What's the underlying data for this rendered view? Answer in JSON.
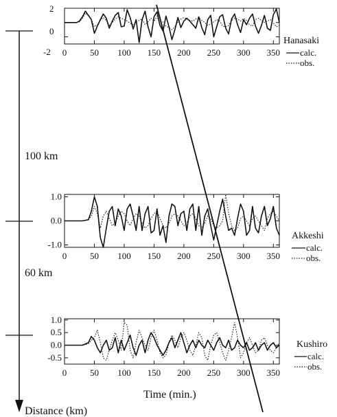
{
  "chart_data": [
    {
      "type": "line",
      "station": "Hanasaki",
      "x": [
        0,
        10,
        20,
        25,
        30,
        35,
        40,
        45,
        50,
        55,
        60,
        65,
        70,
        75,
        80,
        85,
        90,
        95,
        100,
        105,
        110,
        115,
        120,
        125,
        130,
        135,
        140,
        145,
        150,
        155,
        160,
        165,
        170,
        175,
        180,
        185,
        190,
        195,
        200,
        205,
        210,
        215,
        220,
        225,
        230,
        235,
        240,
        245,
        250,
        255,
        260,
        265,
        270,
        275,
        280,
        285,
        290,
        295,
        300,
        305,
        310,
        315,
        320,
        325,
        330,
        335,
        340,
        345,
        350,
        355,
        360
      ],
      "series": [
        {
          "name": "calc.",
          "style": "solid",
          "values": [
            0,
            0,
            0,
            0.2,
            0.8,
            1.6,
            1.0,
            0.4,
            -1.5,
            -0.5,
            0.4,
            1.2,
            0.6,
            -0.8,
            0.2,
            1.0,
            1.4,
            -0.6,
            -0.5,
            1.8,
            0.7,
            -0.9,
            0.4,
            -2.8,
            0.4,
            1.6,
            -0.6,
            -2.0,
            0.8,
            1.5,
            -0.4,
            -1.2,
            0.9,
            -0.6,
            -2.4,
            -1.0,
            0.7,
            -0.7,
            0.2,
            0.6,
            0.2,
            -0.3,
            -0.8,
            0.8,
            -0.7,
            -1.7,
            0.4,
            1.0,
            -2.0,
            -0.6,
            0.8,
            1.1,
            -0.8,
            -1.6,
            0.5,
            1.2,
            -0.3,
            -1.4,
            0.4,
            -0.3,
            0.6,
            1.2,
            -0.5,
            -1.5,
            -0.4,
            1.0,
            -0.8,
            -1.1,
            1.1,
            1.9,
            0.0
          ]
        },
        {
          "name": "obs.",
          "style": "dotted",
          "values": [
            0,
            0,
            0,
            0.1,
            0.6,
            1.3,
            1.0,
            0.4,
            -0.6,
            -0.3,
            0.3,
            0.7,
            0.3,
            -0.4,
            0.0,
            0.5,
            0.8,
            0.6,
            0.4,
            0.2,
            -0.1,
            -0.3,
            0.1,
            0.3,
            0.5,
            -0.3,
            0.1,
            0.6,
            0.2,
            0.9,
            -0.4,
            0.1,
            -0.5,
            -0.7,
            -1.0,
            -0.6,
            0.1,
            0.5,
            0.7,
            0.5,
            0.3,
            0.2,
            0.5,
            0.7,
            0.3,
            0.0,
            -0.4,
            -0.2,
            0.1,
            0.4,
            0.2,
            -0.5,
            -0.6,
            -0.4,
            0.3,
            0.6,
            0.5,
            0.2,
            0.6,
            0.3,
            -0.3,
            -0.5,
            0.4,
            0.6,
            0.3,
            0.0,
            0.2,
            0.4,
            -0.1,
            -0.6,
            -0.4
          ]
        }
      ],
      "ylim": [
        -3,
        2
      ],
      "yticks": [
        2,
        0,
        -2
      ],
      "xlim": [
        0,
        360
      ],
      "xticks": [
        0,
        50,
        100,
        150,
        200,
        250,
        300,
        350
      ]
    },
    {
      "type": "line",
      "station": "Akkeshi",
      "x": [
        0,
        10,
        20,
        30,
        40,
        45,
        50,
        55,
        60,
        65,
        70,
        75,
        80,
        85,
        90,
        95,
        100,
        105,
        110,
        115,
        120,
        125,
        130,
        135,
        140,
        145,
        150,
        155,
        160,
        165,
        170,
        175,
        180,
        185,
        190,
        195,
        200,
        205,
        210,
        215,
        220,
        225,
        230,
        235,
        240,
        245,
        250,
        255,
        260,
        265,
        270,
        275,
        280,
        285,
        290,
        295,
        300,
        305,
        310,
        315,
        320,
        325,
        330,
        335,
        340,
        345,
        350,
        355,
        360
      ],
      "series": [
        {
          "name": "calc.",
          "style": "solid",
          "values": [
            0,
            0,
            0,
            0,
            0.05,
            0.4,
            1.0,
            0.6,
            -0.7,
            -1.1,
            -0.3,
            0.4,
            0.6,
            -0.2,
            0.5,
            0.2,
            -0.4,
            0.5,
            0.7,
            0.2,
            -0.4,
            0.6,
            -0.4,
            0.3,
            0.6,
            -0.5,
            -0.4,
            0.5,
            -0.6,
            -0.2,
            -0.9,
            0.2,
            0.7,
            0.6,
            -0.2,
            0.3,
            0.4,
            -0.4,
            0.5,
            0.7,
            -0.4,
            0.6,
            -0.6,
            0.2,
            0.5,
            -0.2,
            -0.8,
            -0.2,
            0.4,
            0.9,
            0.2,
            -0.4,
            -0.3,
            -0.6,
            0.1,
            0.7,
            0.4,
            -0.6,
            -0.4,
            0.6,
            -0.3,
            -0.5,
            0.2,
            0.6,
            -0.2,
            0.1,
            0.6,
            -0.3,
            -0.6
          ]
        },
        {
          "name": "obs.",
          "style": "dotted",
          "values": [
            0,
            0,
            0,
            0,
            0.05,
            0.2,
            0.6,
            0.3,
            -0.3,
            0.2,
            0.4,
            0.1,
            -0.2,
            -0.1,
            0.2,
            0.4,
            0.3,
            0.0,
            -0.2,
            0.1,
            0.3,
            0.2,
            -0.1,
            -0.3,
            -0.2,
            0.1,
            0.3,
            0.4,
            0.1,
            -0.2,
            -0.3,
            -0.1,
            0.2,
            0.3,
            0.2,
            0.0,
            -0.2,
            -0.1,
            0.2,
            0.3,
            0.1,
            -0.2,
            -0.3,
            -0.1,
            0.2,
            0.1,
            -0.2,
            -0.3,
            -0.2,
            0.0,
            1.1,
            0.3,
            -0.2,
            -0.4,
            -0.3,
            0.1,
            0.2,
            0.0,
            -0.2,
            0.1,
            0.2,
            0.0,
            -0.2,
            -0.4,
            0.1,
            0.3,
            0.4,
            0.2,
            0.0
          ]
        }
      ],
      "ylim": [
        -1.1,
        1.1
      ],
      "yticks": [
        1.0,
        0.0,
        -1.0
      ],
      "ytick_labels": [
        "1.0",
        "0.0",
        "-1.0"
      ],
      "xlim": [
        0,
        360
      ],
      "xticks": [
        0,
        50,
        100,
        150,
        200,
        250,
        300,
        350
      ]
    },
    {
      "type": "line",
      "station": "Kushiro",
      "x": [
        0,
        10,
        20,
        30,
        40,
        45,
        50,
        55,
        60,
        65,
        70,
        75,
        80,
        85,
        90,
        95,
        100,
        105,
        110,
        115,
        120,
        125,
        130,
        135,
        140,
        145,
        150,
        155,
        160,
        165,
        170,
        175,
        180,
        185,
        190,
        195,
        200,
        205,
        210,
        215,
        220,
        225,
        230,
        235,
        240,
        245,
        250,
        255,
        260,
        265,
        270,
        275,
        280,
        285,
        290,
        295,
        300,
        305,
        310,
        315,
        320,
        325,
        330,
        335,
        340,
        345,
        350,
        355,
        360
      ],
      "series": [
        {
          "name": "calc.",
          "style": "solid",
          "values": [
            0,
            0,
            0,
            0,
            0.1,
            0.35,
            0.2,
            -0.1,
            -0.3,
            0.0,
            0.2,
            -0.2,
            -0.1,
            0.3,
            -0.3,
            0.2,
            -0.2,
            0.1,
            0.4,
            -0.1,
            -0.4,
            0.0,
            0.2,
            -0.3,
            0.2,
            0.5,
            0.3,
            0.0,
            -0.2,
            -0.4,
            -0.2,
            0.1,
            0.3,
            -0.1,
            0.2,
            0.5,
            0.1,
            -0.3,
            0.0,
            0.2,
            -0.1,
            0.2,
            0.0,
            -0.1,
            0.2,
            0.0,
            -0.2,
            0.1,
            0.3,
            0.0,
            -0.1,
            0.2,
            -0.2,
            -0.1,
            0.2,
            0.0,
            -0.1,
            0.1,
            -0.2,
            -0.1,
            0.1,
            -0.2,
            0.0,
            0.1,
            -0.2,
            0.0,
            0.1,
            -0.1,
            0.0
          ]
        },
        {
          "name": "obs.",
          "style": "dotted",
          "values": [
            0,
            0,
            0,
            0,
            0.05,
            0.2,
            0.3,
            0.6,
            0.1,
            -0.5,
            -0.6,
            -0.2,
            0.2,
            0.5,
            0.2,
            -0.2,
            0.9,
            0.8,
            -0.2,
            -0.5,
            0.1,
            0.6,
            0.3,
            0.0,
            -0.2,
            0.3,
            0.6,
            0.2,
            -0.3,
            -0.5,
            -0.4,
            0.1,
            0.4,
            0.2,
            -0.1,
            0.3,
            0.5,
            0.2,
            -0.2,
            -0.4,
            0.0,
            0.5,
            0.3,
            -0.4,
            -0.6,
            0.0,
            0.4,
            0.5,
            0.1,
            -0.3,
            -0.6,
            -0.2,
            0.3,
            0.9,
            0.3,
            -0.5,
            -0.3,
            0.1,
            0.3,
            0.0,
            -0.3,
            -0.2,
            0.2,
            0.3,
            0.0,
            -0.2,
            -0.3,
            -0.1,
            0.1
          ]
        }
      ],
      "ylim": [
        -0.75,
        1.05
      ],
      "yticks": [
        1.0,
        0.5,
        0.0,
        -0.5
      ],
      "ytick_labels": [
        "1.0",
        "0.5",
        "0.0",
        "-0.5"
      ],
      "xlim": [
        0,
        360
      ],
      "xticks": [
        0,
        50,
        100,
        150,
        200,
        250,
        300,
        350
      ]
    }
  ],
  "labels": {
    "station1": "Hanasaki",
    "station2": "Akkeshi",
    "station3": "Kushiro",
    "calc": "calc.",
    "obs": "obs.",
    "dist1": "100 km",
    "dist2": "60 km",
    "time": "Time (min.)",
    "distance": "Distance (km)"
  },
  "x_tick_labels": [
    "0",
    "50",
    "100",
    "150",
    "200",
    "250",
    "300",
    "350"
  ],
  "hanasaki_ytick_labels": [
    "2",
    "0",
    "-2"
  ]
}
